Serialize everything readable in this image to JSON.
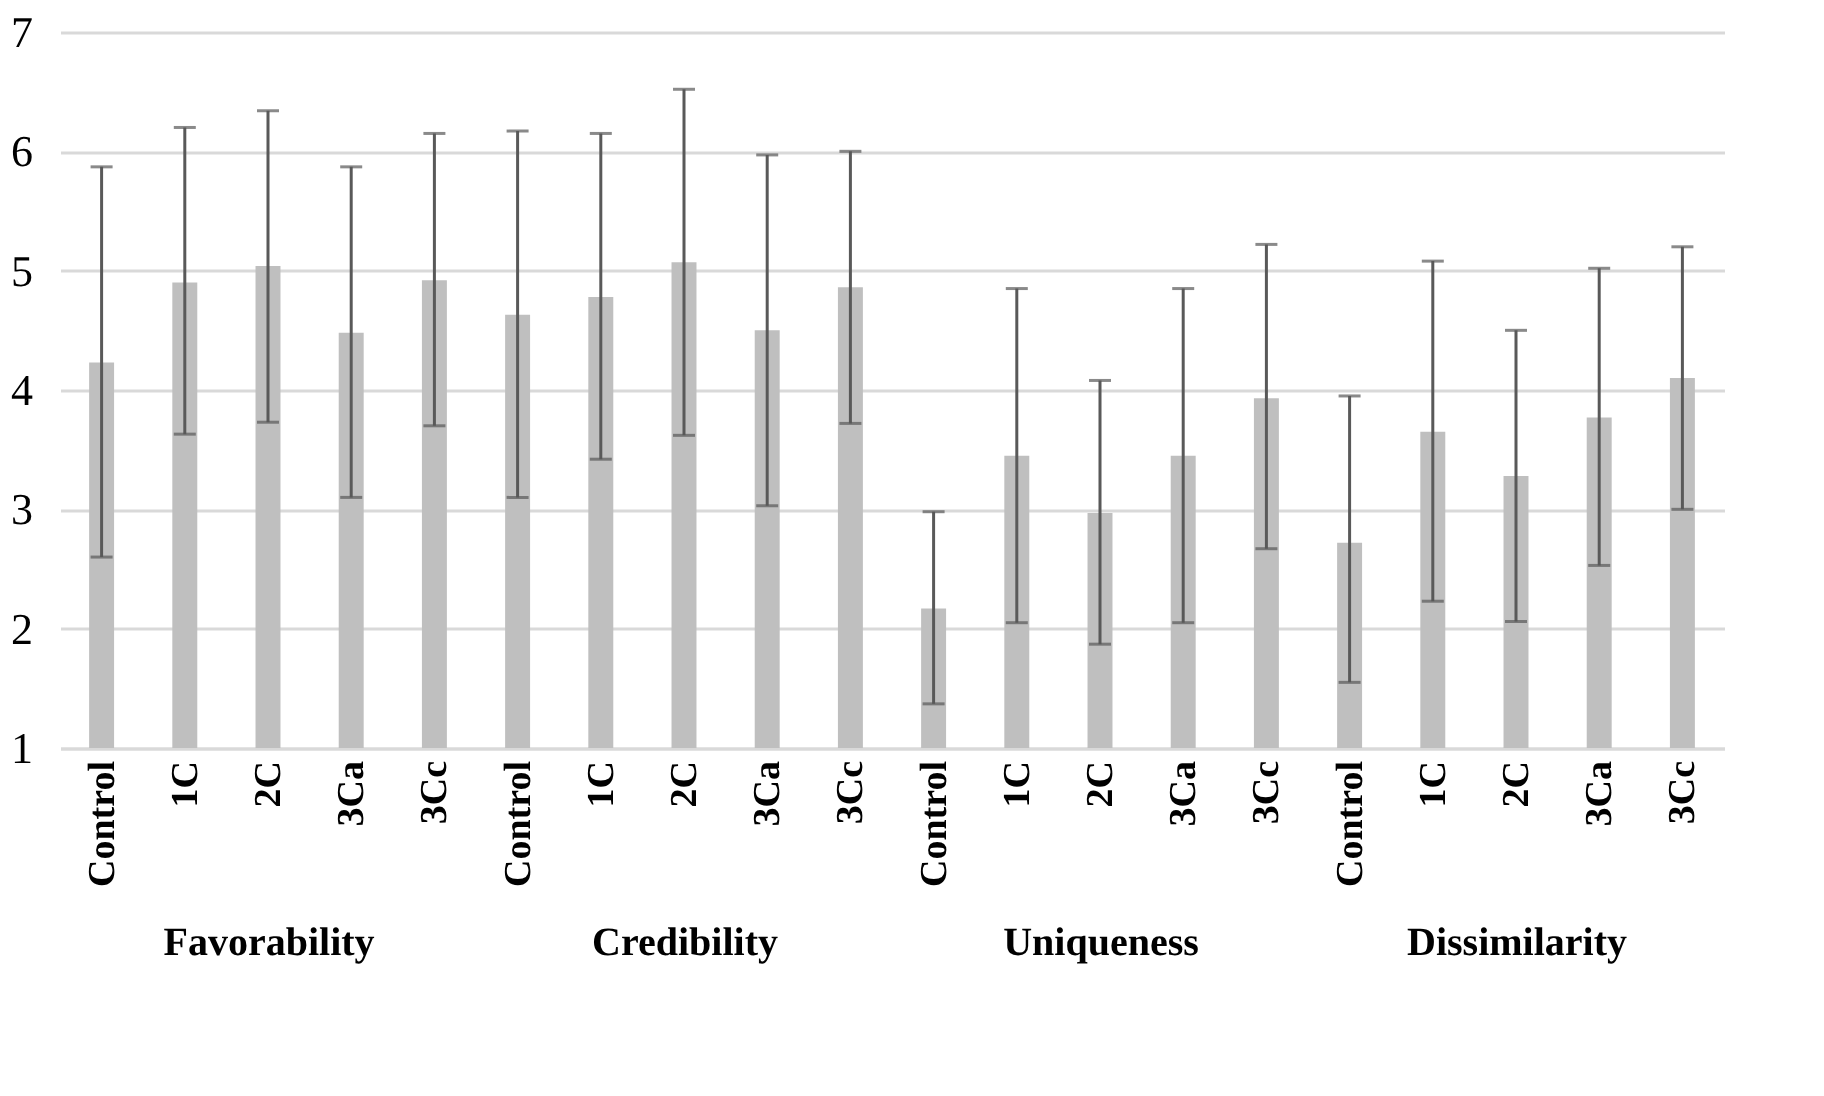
{
  "chart_data": {
    "type": "bar",
    "categories": [
      "Control",
      "1C",
      "2C",
      "3Ca",
      "3Cc",
      "Control",
      "1C",
      "2C",
      "3Ca",
      "3Cc",
      "Control",
      "1C",
      "2C",
      "3Ca",
      "3Cc",
      "Control",
      "1C",
      "2C",
      "3Ca",
      "3Cc"
    ],
    "values": [
      4.23,
      4.9,
      5.04,
      4.48,
      4.92,
      4.63,
      4.78,
      5.07,
      4.5,
      4.86,
      2.17,
      3.45,
      2.97,
      3.45,
      3.93,
      2.72,
      3.65,
      3.28,
      3.77,
      4.1
    ],
    "errors": [
      [
        2.6,
        5.87
      ],
      [
        3.63,
        6.2
      ],
      [
        3.73,
        6.34
      ],
      [
        3.1,
        5.87
      ],
      [
        3.7,
        6.15
      ],
      [
        3.1,
        6.17
      ],
      [
        3.42,
        6.15
      ],
      [
        3.62,
        6.52
      ],
      [
        3.03,
        5.97
      ],
      [
        3.72,
        6.0
      ],
      [
        1.37,
        2.98
      ],
      [
        2.05,
        4.85
      ],
      [
        1.87,
        4.08
      ],
      [
        2.05,
        4.85
      ],
      [
        2.67,
        5.22
      ],
      [
        1.55,
        3.95
      ],
      [
        2.23,
        5.08
      ],
      [
        2.06,
        4.5
      ],
      [
        2.53,
        5.02
      ],
      [
        3.0,
        5.2
      ]
    ],
    "color": "#bfbfbf",
    "ylim": [
      1,
      7
    ],
    "yticks": [
      1,
      2,
      3,
      4,
      5,
      6,
      7
    ],
    "grid": "y",
    "annotations": [
      "Favorability",
      "Credibility",
      "Uniqueness",
      "Dissimilarity"
    ]
  }
}
